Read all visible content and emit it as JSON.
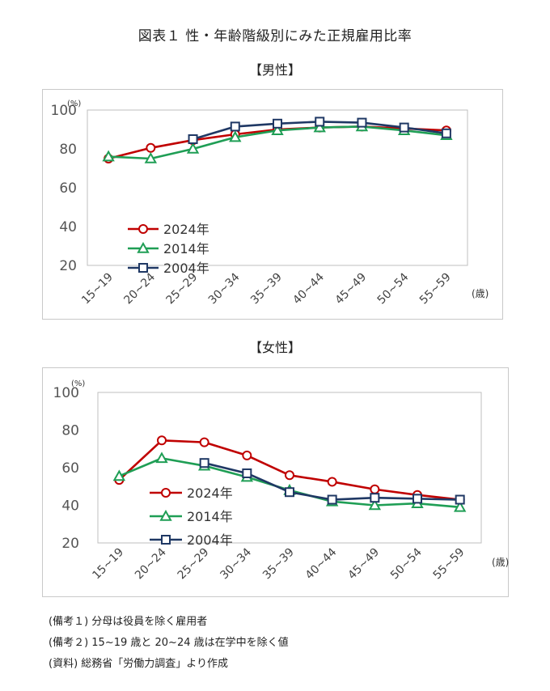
{
  "figure_title": "図表１ 性・年齢階級別にみた正規雇用比率",
  "notes": [
    "(備考１) 分母は役員を除く雇用者",
    "(備考２) 15~19 歳と 20~24 歳は在学中を除く値",
    "(資料) 総務省「労働力調査」より作成"
  ],
  "colors": {
    "2024": "#c00000",
    "2014": "#1f9e55",
    "2004": "#1f3864"
  },
  "chart_data": [
    {
      "type": "line",
      "section_title": "【男性】",
      "title": "",
      "ylabel": "(%)",
      "xlabel": "(歳)",
      "ylim": [
        20,
        100
      ],
      "yticks": [
        "20",
        "40",
        "60",
        "80",
        "100"
      ],
      "categories": [
        "15~19",
        "20~24",
        "25~29",
        "30~34",
        "35~39",
        "40~44",
        "45~49",
        "50~54",
        "55~59"
      ],
      "series": [
        {
          "name": "2024年",
          "marker": "circle",
          "color": "#c00000",
          "values": [
            75,
            80.5,
            84.5,
            87.5,
            90,
            91,
            91.5,
            90.5,
            89.5
          ]
        },
        {
          "name": "2014年",
          "marker": "triangle",
          "color": "#1f9e55",
          "values": [
            76,
            75,
            80,
            86,
            89.5,
            91,
            91.5,
            89.5,
            87
          ]
        },
        {
          "name": "2004年",
          "marker": "square",
          "color": "#1f3864",
          "values": [
            null,
            null,
            85,
            91.5,
            93,
            94,
            93.5,
            91,
            88
          ]
        }
      ]
    },
    {
      "type": "line",
      "section_title": "【女性】",
      "title": "",
      "ylabel": "(%)",
      "xlabel": "(歳)",
      "ylim": [
        20,
        100
      ],
      "yticks": [
        "20",
        "40",
        "60",
        "80",
        "100"
      ],
      "categories": [
        "15~19",
        "20~24",
        "25~29",
        "30~34",
        "35~39",
        "40~44",
        "45~49",
        "50~54",
        "55~59"
      ],
      "series": [
        {
          "name": "2024年",
          "marker": "circle",
          "color": "#c00000",
          "values": [
            53.5,
            74.5,
            73.5,
            66.5,
            56,
            52.5,
            48.5,
            45.5,
            43
          ]
        },
        {
          "name": "2014年",
          "marker": "triangle",
          "color": "#1f9e55",
          "values": [
            55.5,
            65,
            61,
            55,
            48,
            42,
            40,
            41,
            39
          ]
        },
        {
          "name": "2004年",
          "marker": "square",
          "color": "#1f3864",
          "values": [
            null,
            null,
            62.5,
            57,
            47,
            43,
            44,
            43.5,
            43
          ]
        }
      ]
    }
  ]
}
